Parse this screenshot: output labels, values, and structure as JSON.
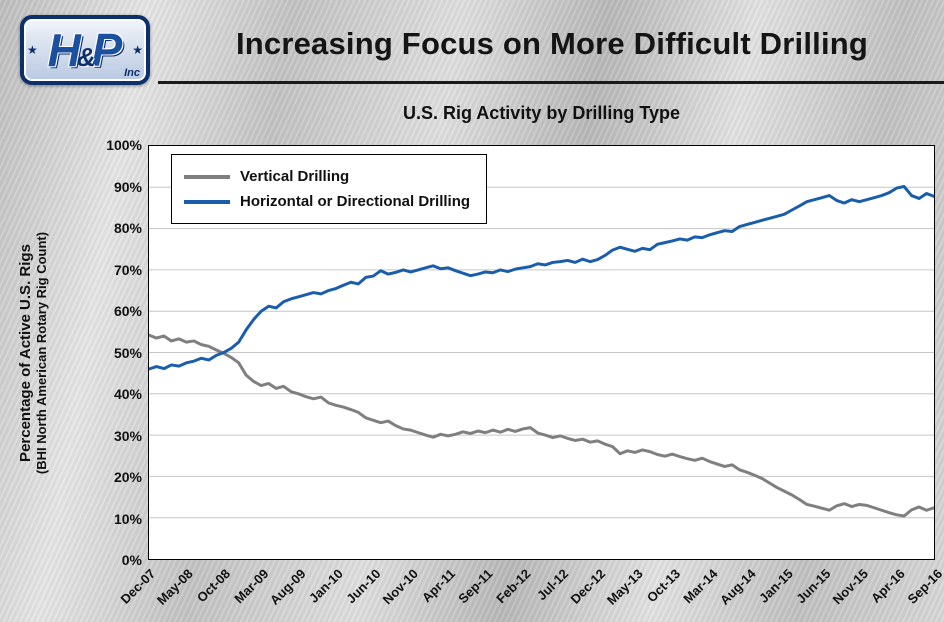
{
  "header": {
    "title": "Increasing Focus on More Difficult Drilling",
    "logo": {
      "letter_h": "H",
      "amp": "&",
      "letter_p": "P",
      "inc": "Inc",
      "star": "★"
    }
  },
  "chart_data": {
    "type": "line",
    "title": "U.S. Rig Activity by Drilling Type",
    "ylabel": "Percentage of Active U.S. Rigs",
    "ylabel_sub": "(BHI North American Rotary Rig Count)",
    "ylim": [
      0,
      100
    ],
    "ytick_step": 10,
    "ytick_labels": [
      "0%",
      "10%",
      "20%",
      "30%",
      "40%",
      "50%",
      "60%",
      "70%",
      "80%",
      "90%",
      "100%"
    ],
    "x_tick_labels": [
      "Dec-07",
      "May-08",
      "Oct-08",
      "Mar-09",
      "Aug-09",
      "Jan-10",
      "Jun-10",
      "Nov-10",
      "Apr-11",
      "Sep-11",
      "Feb-12",
      "Jul-12",
      "Dec-12",
      "May-13",
      "Oct-13",
      "Mar-14",
      "Aug-14",
      "Jan-15",
      "Jun-15",
      "Nov-15",
      "Apr-16",
      "Sep-16"
    ],
    "x_tick_interval": 5,
    "grid": true,
    "legend_position": "top-left",
    "series": [
      {
        "name": "Vertical Drilling",
        "color": "#7f7f7f",
        "values": [
          54.2,
          53.5,
          54.0,
          52.8,
          53.3,
          52.5,
          52.8,
          51.9,
          51.5,
          50.6,
          49.8,
          48.8,
          47.5,
          44.5,
          43.0,
          42.0,
          42.5,
          41.3,
          41.8,
          40.5,
          40.0,
          39.3,
          38.8,
          39.2,
          37.8,
          37.2,
          36.8,
          36.2,
          35.5,
          34.2,
          33.6,
          33.0,
          33.4,
          32.3,
          31.5,
          31.2,
          30.6,
          30.0,
          29.5,
          30.2,
          29.8,
          30.2,
          30.8,
          30.4,
          31.0,
          30.6,
          31.2,
          30.7,
          31.4,
          30.9,
          31.5,
          31.8,
          30.5,
          30.0,
          29.4,
          29.8,
          29.2,
          28.7,
          29.0,
          28.3,
          28.6,
          27.8,
          27.2,
          25.5,
          26.2,
          25.8,
          26.4,
          26.0,
          25.3,
          24.9,
          25.4,
          24.8,
          24.3,
          23.9,
          24.4,
          23.6,
          23.0,
          22.4,
          22.8,
          21.6,
          21.0,
          20.3,
          19.5,
          18.4,
          17.3,
          16.4,
          15.5,
          14.4,
          13.2,
          12.8,
          12.3,
          11.8,
          12.9,
          13.4,
          12.7,
          13.2,
          13.0,
          12.4,
          11.8,
          11.2,
          10.7,
          10.4,
          11.9,
          12.6,
          11.8,
          12.4
        ]
      },
      {
        "name": "Horizontal or Directional Drilling",
        "color": "#1a5dab",
        "values": [
          46.0,
          46.6,
          46.1,
          47.0,
          46.7,
          47.5,
          47.9,
          48.6,
          48.2,
          49.3,
          50.0,
          51.0,
          52.5,
          55.5,
          58.0,
          60.0,
          61.2,
          60.8,
          62.3,
          63.0,
          63.5,
          64.0,
          64.5,
          64.2,
          65.0,
          65.5,
          66.3,
          67.0,
          66.6,
          68.2,
          68.5,
          69.8,
          69.0,
          69.4,
          70.0,
          69.5,
          70.0,
          70.5,
          71.0,
          70.3,
          70.5,
          69.8,
          69.2,
          68.6,
          69.0,
          69.5,
          69.3,
          70.0,
          69.6,
          70.2,
          70.5,
          70.8,
          71.5,
          71.2,
          71.8,
          72.0,
          72.3,
          71.8,
          72.6,
          72.0,
          72.5,
          73.5,
          74.8,
          75.5,
          75.0,
          74.5,
          75.2,
          74.9,
          76.2,
          76.6,
          77.0,
          77.5,
          77.2,
          78.0,
          77.8,
          78.5,
          79.0,
          79.5,
          79.3,
          80.5,
          81.0,
          81.5,
          82.0,
          82.5,
          83.0,
          83.5,
          84.5,
          85.5,
          86.5,
          87.0,
          87.5,
          88.0,
          86.8,
          86.2,
          87.0,
          86.5,
          87.0,
          87.5,
          88.0,
          88.7,
          89.8,
          90.2,
          88.0,
          87.3,
          88.5,
          87.8
        ]
      }
    ]
  }
}
